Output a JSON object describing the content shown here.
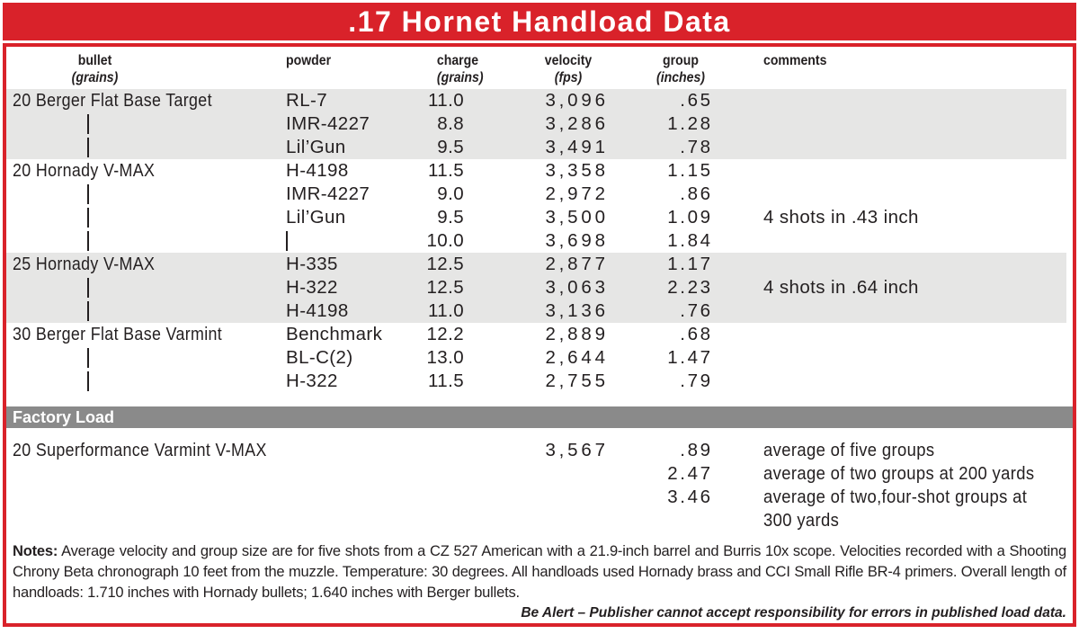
{
  "title": ".17 Hornet Handload Data",
  "header": {
    "col1": {
      "line1": "bullet",
      "line2": "(grains)"
    },
    "col2": {
      "line1": "powder"
    },
    "col3": {
      "line1": "charge",
      "line2": "(grains)"
    },
    "col4": {
      "line1": "velocity",
      "line2": "(fps)"
    },
    "col5": {
      "line1": "group",
      "line2": "(inches)"
    },
    "col6": {
      "line1": "comments"
    }
  },
  "groups": [
    {
      "bullet": "20 Berger Flat Base Target",
      "shaded": true,
      "rows": [
        {
          "powder": "RL-7",
          "charge": "11.0",
          "velocity": "3,096",
          "group": ".65",
          "comments": ""
        },
        {
          "powder": "IMR-4227",
          "charge": "8.8",
          "velocity": "3,286",
          "group": "1.28",
          "comments": ""
        },
        {
          "powder": "Lil’Gun",
          "charge": "9.5",
          "velocity": "3,491",
          "group": ".78",
          "comments": ""
        }
      ]
    },
    {
      "bullet": "20 Hornady V-MAX",
      "shaded": false,
      "rows": [
        {
          "powder": "H-4198",
          "charge": "11.5",
          "velocity": "3,358",
          "group": "1.15",
          "comments": ""
        },
        {
          "powder": "IMR-4227",
          "charge": "9.0",
          "velocity": "2,972",
          "group": ".86",
          "comments": ""
        },
        {
          "powder": "Lil’Gun",
          "charge": "9.5",
          "velocity": "3,500",
          "group": "1.09",
          "comments": "4 shots in .43 inch"
        },
        {
          "powder": "",
          "powder_ditto": true,
          "charge": "10.0",
          "velocity": "3,698",
          "group": "1.84",
          "comments": ""
        }
      ]
    },
    {
      "bullet": "25 Hornady V-MAX",
      "shaded": true,
      "rows": [
        {
          "powder": "H-335",
          "charge": "12.5",
          "velocity": "2,877",
          "group": "1.17",
          "comments": ""
        },
        {
          "powder": "H-322",
          "charge": "12.5",
          "velocity": "3,063",
          "group": "2.23",
          "comments": "4 shots in .64 inch"
        },
        {
          "powder": "H-4198",
          "charge": "11.0",
          "velocity": "3,136",
          "group": ".76",
          "comments": ""
        }
      ]
    },
    {
      "bullet": "30 Berger Flat Base Varmint",
      "shaded": false,
      "rows": [
        {
          "powder": "Benchmark",
          "charge": "12.2",
          "velocity": "2,889",
          "group": ".68",
          "comments": ""
        },
        {
          "powder": "BL-C(2)",
          "charge": "13.0",
          "velocity": "2,644",
          "group": "1.47",
          "comments": ""
        },
        {
          "powder": "H-322",
          "charge": "11.5",
          "velocity": "2,755",
          "group": ".79",
          "comments": ""
        }
      ]
    }
  ],
  "factory": {
    "header": "Factory Load",
    "bullet": "20 Superformance Varmint V-MAX",
    "rows": [
      {
        "velocity": "3,567",
        "group": ".89",
        "comments": "average of five groups"
      },
      {
        "velocity": "",
        "group": "2.47",
        "comments": "average of two groups at 200 yards"
      },
      {
        "velocity": "",
        "group": "3.46",
        "comments": "average of two,four-shot groups at\n300 yards"
      }
    ]
  },
  "notes": {
    "label": "Notes:",
    "text": "Average velocity and group size are for five shots from a CZ 527 American with a 21.9-inch barrel and Burris 10x scope. Velocities recorded with a Shooting Chrony Beta chronograph 10 feet from the muzzle. Temperature: 30 degrees. All handloads used Hornady brass and CCI Small Rifle BR-4 primers. Overall length of handloads: 1.710 inches with Hornady bullets; 1.640 inches with Berger bullets."
  },
  "alert": "Be Alert – Publisher cannot accept responsibility for errors in published load data.",
  "colors": {
    "red": "#d9222a",
    "row_shade": "#e6e6e5",
    "factory_bar": "#8a8a8a",
    "text": "#231f20"
  }
}
